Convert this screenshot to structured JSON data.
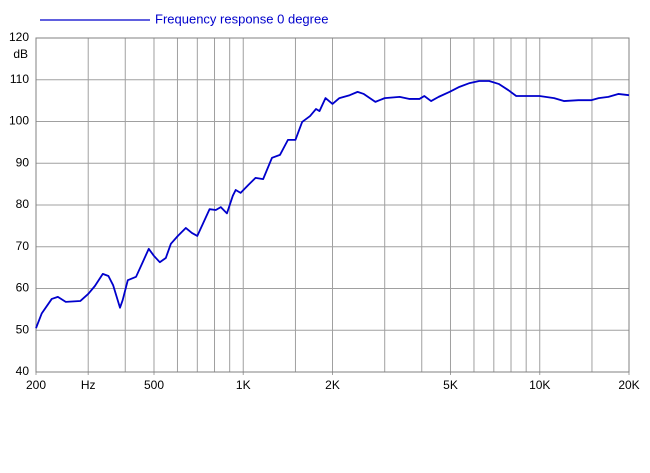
{
  "chart_data": {
    "type": "line",
    "title": "Frequency response 0 degree",
    "y_label": "dB",
    "log_x": true,
    "grid": true,
    "xlim": [
      200,
      20000
    ],
    "xticks": [
      200,
      {
        "value": 300,
        "label": "Hz"
      },
      500,
      {
        "value": 1000,
        "label": "1K"
      },
      {
        "value": 2000,
        "label": "2K"
      },
      {
        "value": 5000,
        "label": "5K"
      },
      {
        "value": 10000,
        "label": "10K"
      },
      {
        "value": 20000,
        "label": "20K"
      }
    ],
    "xgrid": [
      300,
      400,
      500,
      600,
      700,
      800,
      900,
      1000,
      1500,
      2000,
      3000,
      4000,
      5000,
      6000,
      7000,
      8000,
      9000,
      10000,
      15000
    ],
    "ylim": [
      40,
      120
    ],
    "yticks": [
      40,
      50,
      60,
      70,
      80,
      90,
      100,
      110,
      120
    ],
    "x": [
      200,
      209,
      226,
      237,
      252,
      282,
      300,
      316,
      336,
      351,
      364,
      384,
      392,
      408,
      435,
      458,
      480,
      500,
      523,
      548,
      570,
      602,
      640,
      671,
      700,
      731,
      770,
      808,
      840,
      881,
      922,
      943,
      980,
      1040,
      1100,
      1167,
      1250,
      1330,
      1415,
      1500,
      1580,
      1680,
      1760,
      1808,
      1894,
      2000,
      2110,
      2285,
      2430,
      2550,
      2790,
      3000,
      3370,
      3640,
      3930,
      4080,
      4300,
      4560,
      4970,
      5360,
      5800,
      6250,
      6750,
      7270,
      7840,
      8330,
      9120,
      9980,
      11180,
      12060,
      13500,
      14900,
      15800,
      17040,
      18400,
      20000
    ],
    "series": [
      {
        "name": "Frequency response 0 degree",
        "color": "#0000cc",
        "values": [
          50.5,
          54,
          57.5,
          58,
          56.8,
          57,
          58.7,
          60.6,
          63.5,
          63,
          60.8,
          55.4,
          57.2,
          62,
          62.8,
          66.3,
          69.5,
          67.8,
          66.3,
          67.3,
          70.7,
          72.6,
          74.5,
          73.3,
          72.6,
          75.5,
          79,
          78.8,
          79.5,
          78,
          82.2,
          83.6,
          82.9,
          84.8,
          86.5,
          86.2,
          91.3,
          92,
          95.6,
          95.6,
          99.9,
          101.3,
          103,
          102.5,
          105.6,
          104.2,
          105.6,
          106.3,
          107.1,
          106.6,
          104.7,
          105.6,
          105.9,
          105.4,
          105.4,
          106.1,
          104.9,
          105.9,
          107.1,
          108.3,
          109.2,
          109.7,
          109.7,
          109,
          107.5,
          106.1,
          106.1,
          106.1,
          105.6,
          104.9,
          105.1,
          105.1,
          105.6,
          105.9,
          106.6,
          106.3
        ]
      }
    ]
  }
}
